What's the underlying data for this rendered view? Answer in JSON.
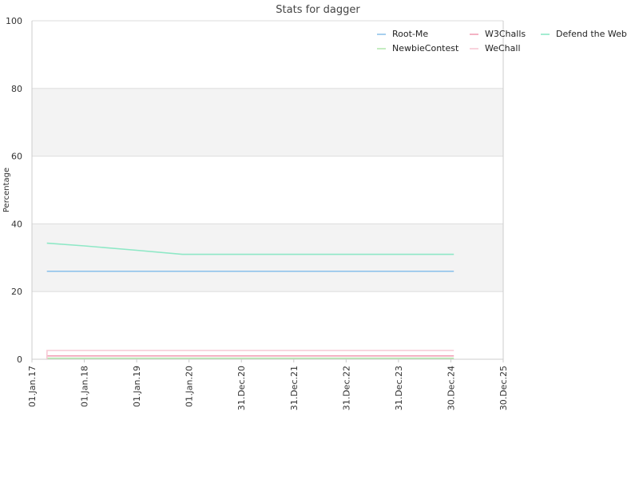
{
  "chart_data": {
    "type": "line",
    "title": "Stats for dagger",
    "ylabel": "Percentage",
    "xlabel": "",
    "ylim": [
      0,
      100
    ],
    "xlim": [
      "2017-01-01",
      "2025-12-30"
    ],
    "y_ticks": [
      0,
      20,
      40,
      60,
      80,
      100
    ],
    "x_ticks": [
      {
        "date": "2017-01-01",
        "label": "01.Jan.17"
      },
      {
        "date": "2018-01-01",
        "label": "01.Jan.18"
      },
      {
        "date": "2019-01-01",
        "label": "01.Jan.19"
      },
      {
        "date": "2020-01-01",
        "label": "01.Jan.20"
      },
      {
        "date": "2020-12-31",
        "label": "31.Dec.20"
      },
      {
        "date": "2021-12-31",
        "label": "31.Dec.21"
      },
      {
        "date": "2022-12-31",
        "label": "31.Dec.22"
      },
      {
        "date": "2023-12-31",
        "label": "31.Dec.23"
      },
      {
        "date": "2024-12-30",
        "label": "30.Dec.24"
      },
      {
        "date": "2025-12-30",
        "label": "30.Dec.25"
      }
    ],
    "grid": true,
    "alternating_bands": true,
    "legend_position": "top-right",
    "series": [
      {
        "name": "Root-Me",
        "color": "#8fc3ea",
        "points": [
          [
            "2017-04-15",
            26
          ],
          [
            "2025-01-20",
            26
          ]
        ]
      },
      {
        "name": "W3Challs",
        "color": "#f2a0b6",
        "points": [
          [
            "2017-04-15",
            1
          ],
          [
            "2025-01-20",
            1
          ]
        ]
      },
      {
        "name": "Defend the Web",
        "color": "#8ee8c6",
        "points": [
          [
            "2017-04-15",
            34.3
          ],
          [
            "2018-01-01",
            33.5
          ],
          [
            "2019-01-01",
            32.2
          ],
          [
            "2019-11-15",
            31
          ],
          [
            "2025-01-20",
            31
          ]
        ]
      },
      {
        "name": "NewbieContest",
        "color": "#b6e8b0",
        "points": [
          [
            "2017-04-15",
            0.3
          ],
          [
            "2025-01-20",
            0.3
          ]
        ]
      },
      {
        "name": "WeChall",
        "color": "#f7c8d4",
        "points": [
          [
            "2017-04-15",
            0
          ],
          [
            "2017-04-16",
            2.6
          ],
          [
            "2025-01-20",
            2.6
          ]
        ]
      }
    ]
  }
}
